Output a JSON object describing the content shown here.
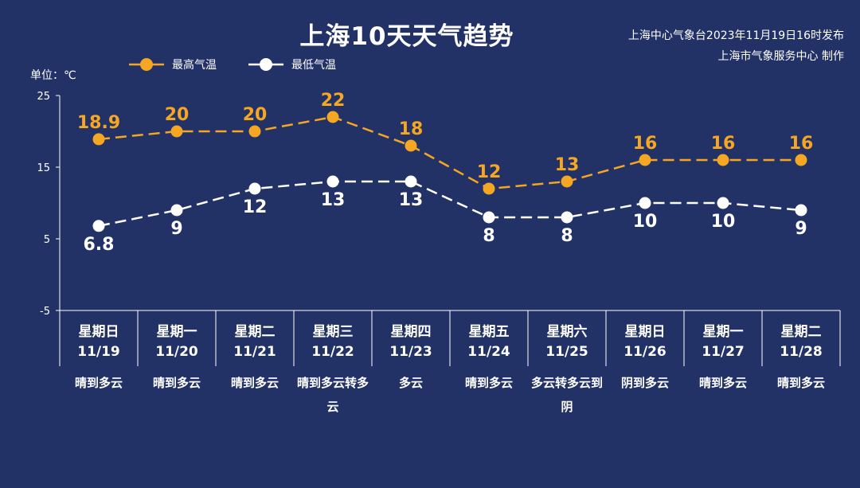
{
  "chart_data": {
    "type": "line",
    "title": "上海10天天气趋势",
    "issuer_line1": "上海中心气象台2023年11月19日16时发布",
    "issuer_line2": "上海市气象服务中心 制作",
    "ylabel": "单位：℃",
    "ylim": [
      -5,
      25
    ],
    "yticks": [
      -5,
      5,
      15,
      25
    ],
    "legend_position": "top-left",
    "grid": false,
    "categories": [
      "11/19",
      "11/20",
      "11/21",
      "11/22",
      "11/23",
      "11/24",
      "11/25",
      "11/26",
      "11/27",
      "11/28"
    ],
    "days": [
      {
        "weekday": "星期日",
        "date": "11/19",
        "weather": "晴到多云"
      },
      {
        "weekday": "星期一",
        "date": "11/20",
        "weather": "晴到多云"
      },
      {
        "weekday": "星期二",
        "date": "11/21",
        "weather": "晴到多云"
      },
      {
        "weekday": "星期三",
        "date": "11/22",
        "weather": "晴到多云转多云"
      },
      {
        "weekday": "星期四",
        "date": "11/23",
        "weather": "多云"
      },
      {
        "weekday": "星期五",
        "date": "11/24",
        "weather": "晴到多云"
      },
      {
        "weekday": "星期六",
        "date": "11/25",
        "weather": "多云转多云到阴"
      },
      {
        "weekday": "星期日",
        "date": "11/26",
        "weather": "阴到多云"
      },
      {
        "weekday": "星期一",
        "date": "11/27",
        "weather": "晴到多云"
      },
      {
        "weekday": "星期二",
        "date": "11/28",
        "weather": "晴到多云"
      }
    ],
    "series": [
      {
        "name": "最高气温",
        "color": "#f5a623",
        "values": [
          18.9,
          20,
          20,
          22,
          18,
          12,
          13,
          16,
          16,
          16
        ],
        "labels": [
          "18.9",
          "20",
          "20",
          "22",
          "18",
          "12",
          "13",
          "16",
          "16",
          "16"
        ]
      },
      {
        "name": "最低气温",
        "color": "#ffffff",
        "values": [
          6.8,
          9,
          12,
          13,
          13,
          8,
          8,
          10,
          10,
          9
        ],
        "labels": [
          "6.8",
          "9",
          "12",
          "13",
          "13",
          "8",
          "8",
          "10",
          "10",
          "9"
        ]
      }
    ]
  }
}
